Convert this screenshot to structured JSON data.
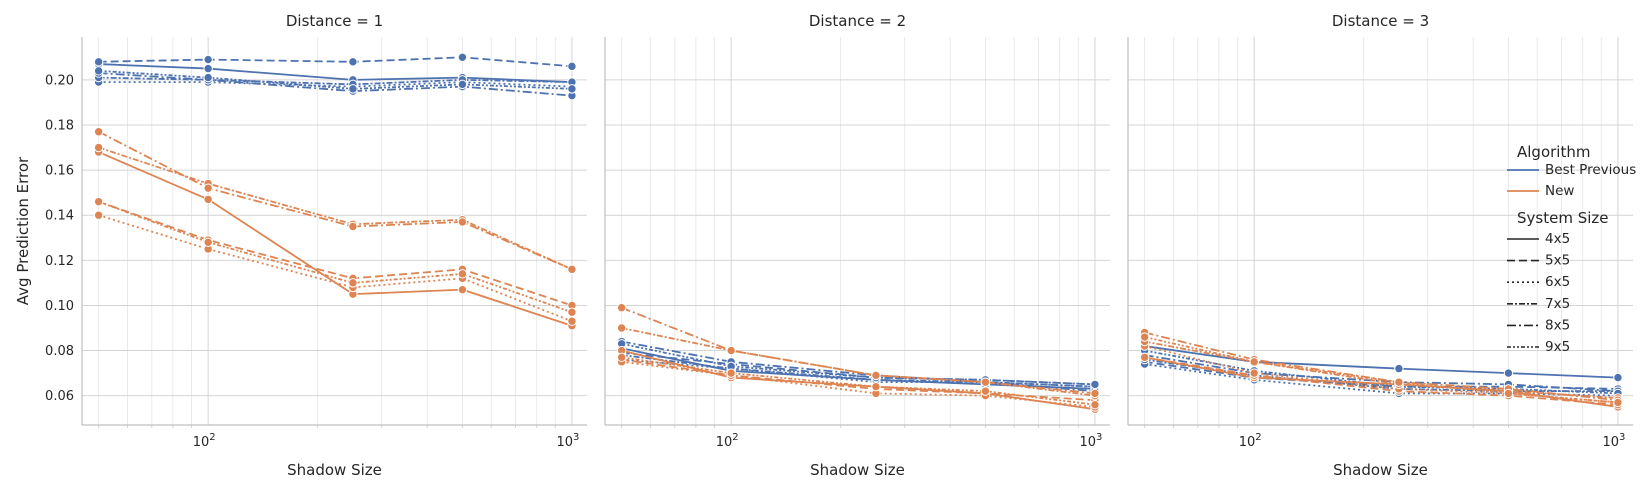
{
  "chart_data": {
    "type": "line",
    "ylabel": "Avg Prediction Error",
    "xlabel": "Shadow Size",
    "x_scale": "log",
    "x": [
      50,
      100,
      250,
      500,
      1000
    ],
    "xlim": [
      45,
      1100
    ],
    "ylim": [
      0.047,
      0.219
    ],
    "yticks": [
      0.06,
      0.08,
      0.1,
      0.12,
      0.14,
      0.16,
      0.18,
      0.2
    ],
    "ytick_labels": [
      "0.06",
      "0.08",
      "0.10",
      "0.12",
      "0.14",
      "0.16",
      "0.18",
      "0.20"
    ],
    "xticks": [
      {
        "value": 100,
        "base": "10",
        "exp": "2"
      },
      {
        "value": 1000,
        "base": "10",
        "exp": "3"
      }
    ],
    "grid": true,
    "legend_position": "right",
    "colors": {
      "Best Previous": "#4c72b0",
      "New": "#dd8452"
    },
    "panels": [
      {
        "title": "Distance = 1",
        "series": [
          {
            "algorithm": "Best Previous",
            "system_size": "4x5",
            "values": [
              0.207,
              0.205,
              0.2,
              0.201,
              0.199
            ]
          },
          {
            "algorithm": "Best Previous",
            "system_size": "5x5",
            "values": [
              0.208,
              0.209,
              0.208,
              0.21,
              0.206
            ]
          },
          {
            "algorithm": "Best Previous",
            "system_size": "6x5",
            "values": [
              0.199,
              0.199,
              0.197,
              0.199,
              0.197
            ]
          },
          {
            "algorithm": "Best Previous",
            "system_size": "7x5",
            "values": [
              0.201,
              0.2,
              0.198,
              0.2,
              0.199
            ]
          },
          {
            "algorithm": "Best Previous",
            "system_size": "8x5",
            "values": [
              0.203,
              0.2,
              0.195,
              0.197,
              0.193
            ]
          },
          {
            "algorithm": "Best Previous",
            "system_size": "9x5",
            "values": [
              0.204,
              0.201,
              0.196,
              0.198,
              0.196
            ]
          },
          {
            "algorithm": "New",
            "system_size": "4x5",
            "values": [
              0.168,
              0.147,
              0.105,
              0.107,
              0.091
            ]
          },
          {
            "algorithm": "New",
            "system_size": "5x5",
            "values": [
              0.146,
              0.129,
              0.112,
              0.116,
              0.1
            ]
          },
          {
            "algorithm": "New",
            "system_size": "6x5",
            "values": [
              0.14,
              0.125,
              0.108,
              0.112,
              0.093
            ]
          },
          {
            "algorithm": "New",
            "system_size": "7x5",
            "values": [
              0.17,
              0.154,
              0.136,
              0.138,
              0.116
            ]
          },
          {
            "algorithm": "New",
            "system_size": "8x5",
            "values": [
              0.177,
              0.152,
              0.135,
              0.137,
              0.116
            ]
          },
          {
            "algorithm": "New",
            "system_size": "9x5",
            "values": [
              0.146,
              0.128,
              0.11,
              0.114,
              0.097
            ]
          }
        ]
      },
      {
        "title": "Distance = 2",
        "series": [
          {
            "algorithm": "Best Previous",
            "system_size": "4x5",
            "values": [
              0.081,
              0.071,
              0.067,
              0.065,
              0.063
            ]
          },
          {
            "algorithm": "Best Previous",
            "system_size": "5x5",
            "values": [
              0.079,
              0.074,
              0.068,
              0.067,
              0.065
            ]
          },
          {
            "algorithm": "Best Previous",
            "system_size": "6x5",
            "values": [
              0.076,
              0.072,
              0.066,
              0.066,
              0.064
            ]
          },
          {
            "algorithm": "Best Previous",
            "system_size": "7x5",
            "values": [
              0.078,
              0.072,
              0.067,
              0.066,
              0.064
            ]
          },
          {
            "algorithm": "Best Previous",
            "system_size": "8x5",
            "values": [
              0.084,
              0.075,
              0.069,
              0.066,
              0.062
            ]
          },
          {
            "algorithm": "Best Previous",
            "system_size": "9x5",
            "values": [
              0.083,
              0.073,
              0.068,
              0.067,
              0.065
            ]
          },
          {
            "algorithm": "New",
            "system_size": "4x5",
            "values": [
              0.08,
              0.068,
              0.064,
              0.061,
              0.054
            ]
          },
          {
            "algorithm": "New",
            "system_size": "5x5",
            "values": [
              0.076,
              0.069,
              0.063,
              0.061,
              0.058
            ]
          },
          {
            "algorithm": "New",
            "system_size": "6x5",
            "values": [
              0.075,
              0.069,
              0.061,
              0.06,
              0.055
            ]
          },
          {
            "algorithm": "New",
            "system_size": "7x5",
            "values": [
              0.09,
              0.08,
              0.069,
              0.066,
              0.06
            ]
          },
          {
            "algorithm": "New",
            "system_size": "8x5",
            "values": [
              0.099,
              0.08,
              0.069,
              0.066,
              0.061
            ]
          },
          {
            "algorithm": "New",
            "system_size": "9x5",
            "values": [
              0.077,
              0.07,
              0.064,
              0.062,
              0.056
            ]
          }
        ]
      },
      {
        "title": "Distance = 3",
        "series": [
          {
            "algorithm": "Best Previous",
            "system_size": "4x5",
            "values": [
              0.082,
              0.075,
              0.072,
              0.07,
              0.068
            ]
          },
          {
            "algorithm": "Best Previous",
            "system_size": "5x5",
            "values": [
              0.075,
              0.068,
              0.064,
              0.064,
              0.063
            ]
          },
          {
            "algorithm": "Best Previous",
            "system_size": "6x5",
            "values": [
              0.074,
              0.067,
              0.061,
              0.061,
              0.06
            ]
          },
          {
            "algorithm": "Best Previous",
            "system_size": "7x5",
            "values": [
              0.076,
              0.069,
              0.063,
              0.062,
              0.062
            ]
          },
          {
            "algorithm": "Best Previous",
            "system_size": "8x5",
            "values": [
              0.078,
              0.07,
              0.066,
              0.065,
              0.062
            ]
          },
          {
            "algorithm": "Best Previous",
            "system_size": "9x5",
            "values": [
              0.08,
              0.071,
              0.064,
              0.063,
              0.061
            ]
          },
          {
            "algorithm": "New",
            "system_size": "4x5",
            "values": [
              0.077,
              0.068,
              0.065,
              0.062,
              0.055
            ]
          },
          {
            "algorithm": "New",
            "system_size": "5x5",
            "values": [
              0.077,
              0.069,
              0.062,
              0.06,
              0.056
            ]
          },
          {
            "algorithm": "New",
            "system_size": "6x5",
            "values": [
              0.082,
              0.07,
              0.063,
              0.061,
              0.057
            ]
          },
          {
            "algorithm": "New",
            "system_size": "7x5",
            "values": [
              0.084,
              0.075,
              0.065,
              0.062,
              0.059
            ]
          },
          {
            "algorithm": "New",
            "system_size": "8x5",
            "values": [
              0.088,
              0.076,
              0.066,
              0.063,
              0.058
            ]
          },
          {
            "algorithm": "New",
            "system_size": "9x5",
            "values": [
              0.086,
              0.075,
              0.066,
              0.061,
              0.057
            ]
          }
        ]
      }
    ],
    "legend": {
      "hue_title": "Algorithm",
      "hue_entries": [
        "Best Previous",
        "New"
      ],
      "style_title": "System Size",
      "style_entries": [
        "4x5",
        "5x5",
        "6x5",
        "7x5",
        "8x5",
        "9x5"
      ]
    }
  }
}
